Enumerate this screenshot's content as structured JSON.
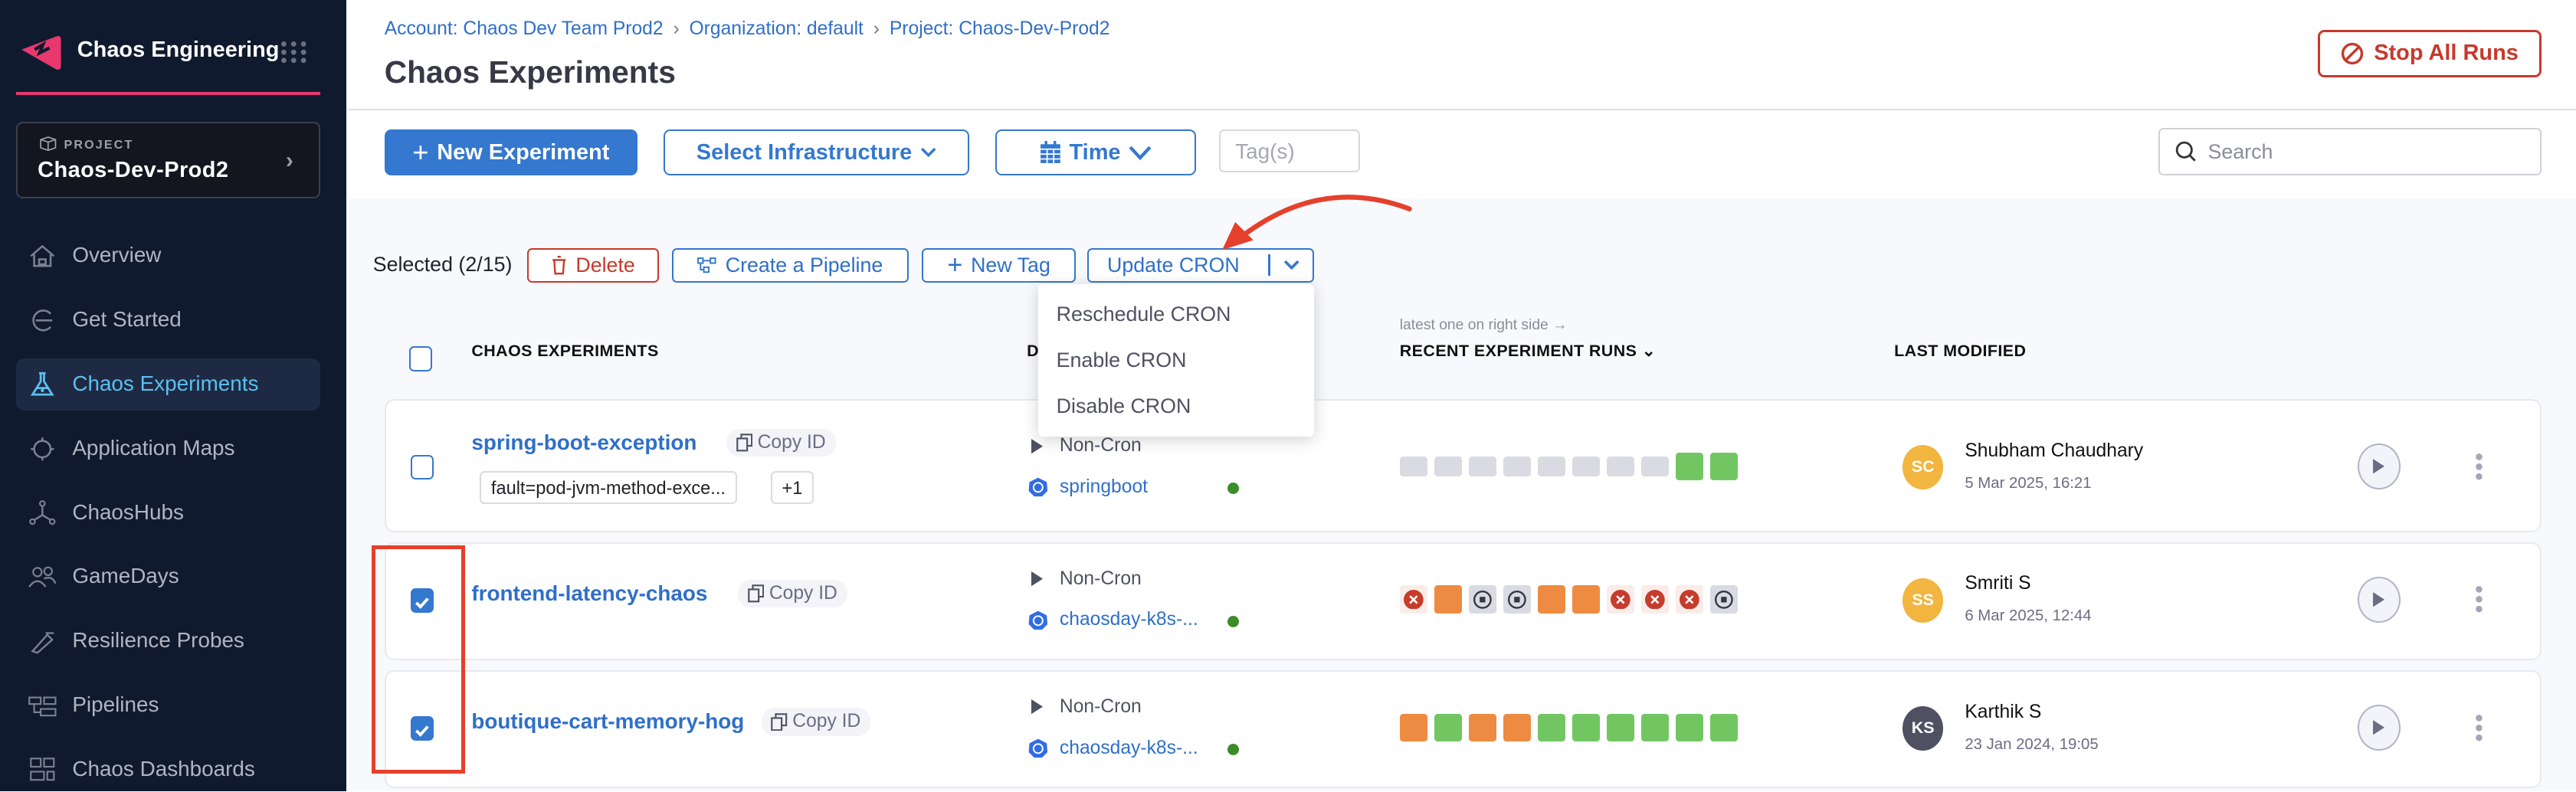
{
  "app": {
    "title": "Chaos Engineering",
    "logo_color": "#e8386e"
  },
  "project": {
    "label": "PROJECT",
    "name": "Chaos-Dev-Prod2"
  },
  "sidebar": {
    "items": [
      {
        "label": "Overview",
        "icon": "home-icon",
        "active": false
      },
      {
        "label": "Get Started",
        "icon": "get-started-icon",
        "active": false
      },
      {
        "label": "Chaos Experiments",
        "icon": "flask-icon",
        "active": true
      },
      {
        "label": "Application Maps",
        "icon": "target-icon",
        "active": false
      },
      {
        "label": "ChaosHubs",
        "icon": "hub-icon",
        "active": false
      },
      {
        "label": "GameDays",
        "icon": "users-icon",
        "active": false
      },
      {
        "label": "Resilience Probes",
        "icon": "probe-icon",
        "active": false
      },
      {
        "label": "Pipelines",
        "icon": "pipeline-icon",
        "active": false
      },
      {
        "label": "Chaos Dashboards",
        "icon": "dashboard-icon",
        "active": false
      }
    ]
  },
  "header": {
    "breadcrumbs": [
      "Account: Chaos Dev Team Prod2",
      "Organization: default",
      "Project: Chaos-Dev-Prod2"
    ],
    "title": "Chaos Experiments",
    "stop_all": "Stop All Runs"
  },
  "toolbar": {
    "new_experiment": "New Experiment",
    "select_infrastructure": "Select Infrastructure",
    "time": "Time",
    "tags_placeholder": "Tag(s)",
    "search_placeholder": "Search"
  },
  "bulk": {
    "selected": "Selected (2/15)",
    "delete": "Delete",
    "create_pipeline": "Create a Pipeline",
    "new_tag": "New Tag",
    "update_cron": "Update CRON",
    "menu": [
      "Reschedule CRON",
      "Enable CRON",
      "Disable CRON"
    ]
  },
  "table": {
    "columns": {
      "experiments": "CHAOS EXPERIMENTS",
      "details": "D",
      "runs_note": "latest one on right side →",
      "runs": "RECENT EXPERIMENT RUNS",
      "modified": "LAST MODIFIED"
    },
    "rows": [
      {
        "name": "spring-boot-exception",
        "copy": "Copy ID",
        "tags": [
          "fault=pod-jvm-method-exce...",
          "+1"
        ],
        "cron": "Non-Cron",
        "infra": "springboot",
        "checked": false,
        "runs": [
          "none",
          "none",
          "none",
          "none",
          "none",
          "none",
          "none",
          "none",
          "passed",
          "passed"
        ],
        "user": "Shubham Chaudhary",
        "initials": "SC",
        "avatar_color": "#f2b53f",
        "date": "5 Mar 2025, 16:21"
      },
      {
        "name": "frontend-latency-chaos",
        "copy": "Copy ID",
        "tags": [],
        "cron": "Non-Cron",
        "infra": "chaosday-k8s-...",
        "checked": true,
        "runs": [
          "error",
          "failed",
          "stopped",
          "stopped",
          "failed",
          "failed",
          "error",
          "error",
          "error",
          "stopped"
        ],
        "user": "Smriti S",
        "initials": "SS",
        "avatar_color": "#f2b53f",
        "date": "6 Mar 2025, 12:44"
      },
      {
        "name": "boutique-cart-memory-hog",
        "copy": "Copy ID",
        "tags": [],
        "cron": "Non-Cron",
        "infra": "chaosday-k8s-...",
        "checked": true,
        "runs": [
          "failed",
          "passed",
          "failed",
          "failed",
          "passed",
          "passed",
          "passed",
          "passed",
          "passed",
          "passed"
        ],
        "user": "Karthik S",
        "initials": "KS",
        "avatar_color": "#4f5162",
        "date": "23 Jan 2024, 19:05"
      }
    ]
  },
  "colors": {
    "primary": "#3478cf",
    "danger": "#c7392b",
    "passed": "#72c662",
    "failed": "#ee8b42",
    "annotation": "#e5402c"
  }
}
